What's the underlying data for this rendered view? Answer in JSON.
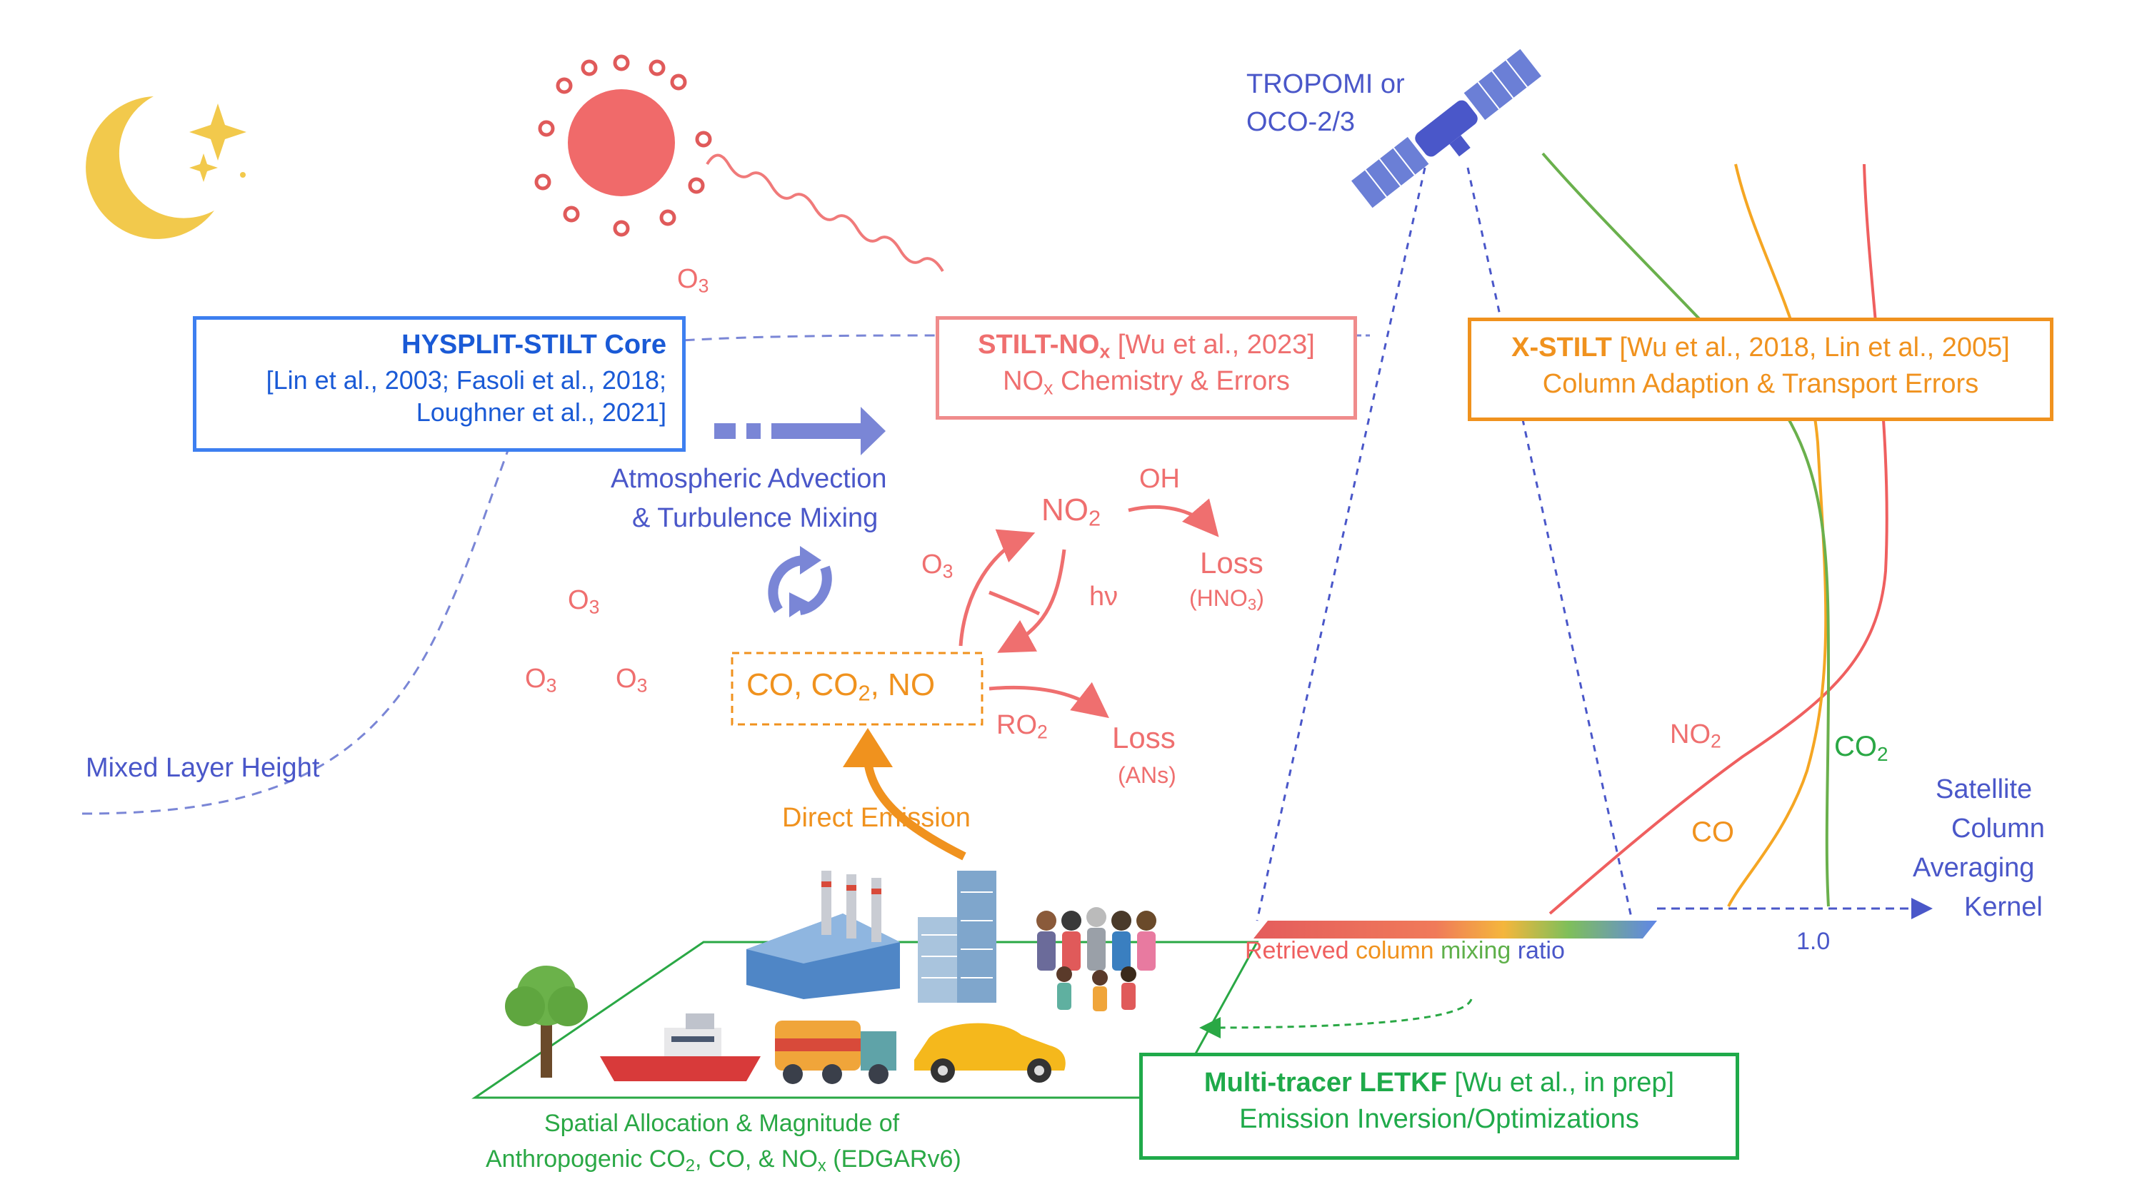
{
  "boxes": {
    "hysplit": {
      "title": "HYSPLIT-STILT Core",
      "refs_line1": "[Lin et al., 2003; Fasoli et al., 2018;",
      "refs_line2": "Loughner et al., 2021]",
      "color": "#3d7ff0"
    },
    "stilt_nox": {
      "title_main": "STILT-NO",
      "title_sub": "x",
      "ref": " [Wu et al., 2023]",
      "line2_main": "NO",
      "line2_sub": "x",
      "line2_rest": " Chemistry & Errors",
      "color": "#f08c8c"
    },
    "xstilt": {
      "title": "X-STILT",
      "ref": " [Wu et al., 2018, Lin et al., 2005]",
      "line2": "Column Adaption & Transport Errors",
      "color": "#f0921e"
    },
    "letkf": {
      "title": "Multi-tracer LETKF",
      "ref": " [Wu et al., in prep]",
      "line2": "Emission Inversion/Optimizations",
      "color": "#1faa4a"
    },
    "species": {
      "text_a": "CO, CO",
      "text_sub": "2",
      "text_b": ", NO",
      "color": "#f0921e"
    }
  },
  "labels": {
    "satellite_line1": "TROPOMI or",
    "satellite_line2": "OCO-2/3",
    "advection_line1": "Atmospheric Advection",
    "advection_line2": "& Turbulence Mixing",
    "mixed_layer": "Mixed Layer Height",
    "direct_emission": "Direct Emission",
    "spatial_line1": "Spatial Allocation & Magnitude of",
    "spatial_line2_a": "Anthropogenic CO",
    "spatial_line2_sub1": "2",
    "spatial_line2_b": ", CO, & NO",
    "spatial_line2_sub2": "x",
    "spatial_line2_c": " (EDGARv6)",
    "retrieved_1": "Retrieved ",
    "retrieved_2": "column ",
    "retrieved_3": "mixing ",
    "retrieved_4": "ratio",
    "sat_ak_1": "Satellite",
    "sat_ak_2": "Column",
    "sat_ak_3": "Averaging",
    "sat_ak_4": "Kernel",
    "one_point_zero": "1.0"
  },
  "chemistry": {
    "o3_top": "O",
    "o3_sub": "3",
    "no2": "NO",
    "no2_sub": "2",
    "oh": "OH",
    "loss": "Loss",
    "loss_hno3_a": "(HNO",
    "loss_hno3_sub": "3",
    "loss_hno3_b": ")",
    "hv": "hν",
    "ro2": "RO",
    "ro2_sub": "2",
    "loss_ans": "(ANs)"
  },
  "curves": {
    "no2_a": "NO",
    "no2_sub": "2",
    "co": "CO",
    "co2_a": "CO",
    "co2_sub": "2"
  },
  "colors": {
    "red": "#ef6f6f",
    "orange": "#f0921e",
    "green": "#2aa845",
    "blue": "#4a57c9",
    "sun": "#f06a6a",
    "moon": "#f2c94c"
  }
}
